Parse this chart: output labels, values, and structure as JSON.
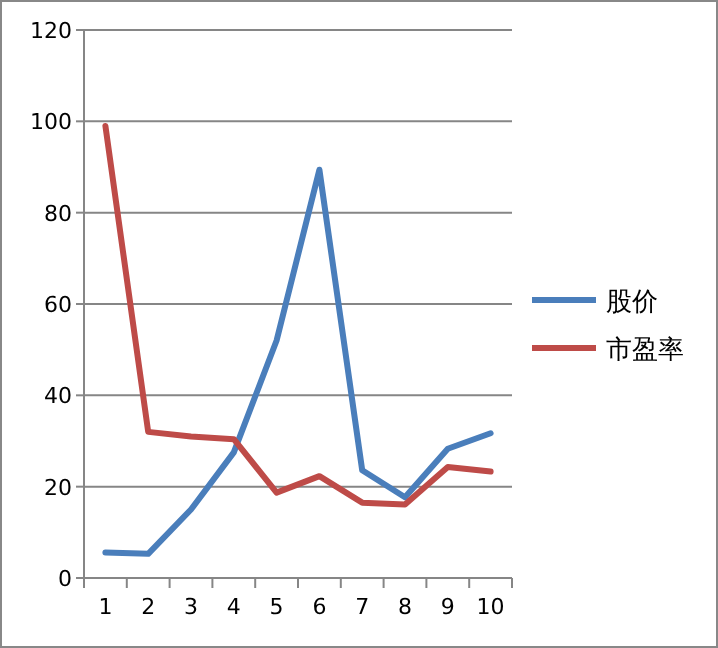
{
  "chart_data": {
    "type": "line",
    "categories": [
      "1",
      "2",
      "3",
      "4",
      "5",
      "6",
      "7",
      "8",
      "9",
      "10"
    ],
    "series": [
      {
        "name": "股价",
        "color": "#4a7ebb",
        "values": [
          5.6,
          5.3,
          15,
          27.5,
          52,
          89.4,
          23.6,
          17.7,
          28.3,
          31.7
        ]
      },
      {
        "name": "市盈率",
        "color": "#be4b48",
        "values": [
          99,
          32,
          31,
          30.4,
          18.7,
          22.3,
          16.5,
          16.1,
          24.3,
          23.3
        ]
      }
    ],
    "ylim": [
      0,
      120
    ],
    "yticks": [
      0,
      20,
      40,
      60,
      80,
      100,
      120
    ],
    "grid": "y",
    "legend": "right"
  }
}
